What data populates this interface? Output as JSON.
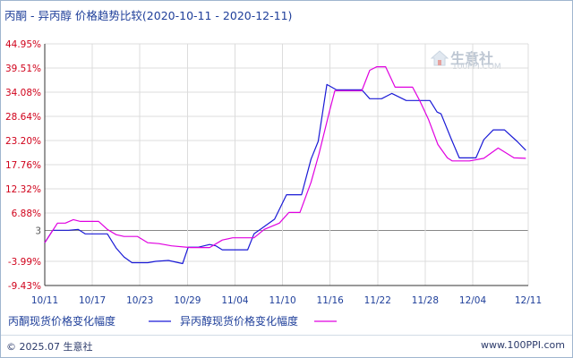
{
  "title": "丙酮 - 异丙醇 价格趋势比较(2020-10-11 - 2020-12-11)",
  "logo": {
    "name": "生意社",
    "domain": "100PPI.COM"
  },
  "footer": {
    "copyright": "© 2025.07 生意社",
    "site": "www.100PPI.com"
  },
  "chart_data": {
    "type": "line",
    "title": "丙酮 - 异丙醇 价格趋势比较(2020-10-11 - 2020-12-11)",
    "y_ticks": [
      "44.95%",
      "39.51%",
      "34.08%",
      "28.64%",
      "23.20%",
      "17.76%",
      "12.32%",
      "6.88%",
      "3",
      "-3.99%",
      "-9.43%"
    ],
    "y_tick_values": [
      44.95,
      39.51,
      34.08,
      28.64,
      23.2,
      17.76,
      12.32,
      6.88,
      3,
      -3.99,
      -9.43
    ],
    "ylim": [
      -9.43,
      44.95
    ],
    "x_labels": [
      "10/11",
      "10/17",
      "10/23",
      "10/29",
      "11/04",
      "11/10",
      "11/16",
      "11/22",
      "11/28",
      "12/04",
      "12/11"
    ],
    "x_label_days": [
      0,
      6,
      12,
      18,
      24,
      30,
      36,
      42,
      48,
      54,
      61
    ],
    "x_range_days": [
      0,
      61
    ],
    "baseline": 3,
    "grid": true,
    "legend_position": "bottom",
    "series": [
      {
        "name": "丙酮现货价格变化幅度",
        "color": "#1a1ad6",
        "points": [
          [
            0,
            0.2
          ],
          [
            1,
            3.0
          ],
          [
            3,
            3.0
          ],
          [
            4.2,
            3.2
          ],
          [
            5.1,
            2.2
          ],
          [
            7.9,
            2.2
          ],
          [
            9,
            -1.0
          ],
          [
            10,
            -3.0
          ],
          [
            11,
            -4.3
          ],
          [
            13,
            -4.3
          ],
          [
            14,
            -4.0
          ],
          [
            15.6,
            -3.8
          ],
          [
            17.4,
            -4.5
          ],
          [
            18.1,
            -0.8
          ],
          [
            19.4,
            -0.8
          ],
          [
            20.8,
            -0.2
          ],
          [
            21.6,
            -0.5
          ],
          [
            22.4,
            -1.4
          ],
          [
            23.7,
            -1.4
          ],
          [
            25.6,
            -1.4
          ],
          [
            26.4,
            2.2
          ],
          [
            27.6,
            3.7
          ],
          [
            29,
            5.5
          ],
          [
            30.5,
            11.0
          ],
          [
            32.4,
            11.0
          ],
          [
            33.6,
            19.0
          ],
          [
            34.5,
            23.0
          ],
          [
            35.6,
            35.8
          ],
          [
            36.8,
            34.6
          ],
          [
            40,
            34.6
          ],
          [
            41,
            32.6
          ],
          [
            42.5,
            32.6
          ],
          [
            43.8,
            33.8
          ],
          [
            45.6,
            32.2
          ],
          [
            48.6,
            32.2
          ],
          [
            49.5,
            29.6
          ],
          [
            50,
            29.2
          ],
          [
            51.3,
            23.5
          ],
          [
            52.3,
            19.3
          ],
          [
            54.4,
            19.3
          ],
          [
            55.4,
            23.4
          ],
          [
            56.6,
            25.6
          ],
          [
            58,
            25.6
          ],
          [
            59.6,
            23.0
          ],
          [
            60.7,
            21.0
          ]
        ]
      },
      {
        "name": "异丙醇现货价格变化幅度",
        "color": "#e000e0",
        "points": [
          [
            0,
            0.2
          ],
          [
            1.6,
            4.6
          ],
          [
            2.6,
            4.6
          ],
          [
            3.6,
            5.4
          ],
          [
            4.5,
            5.0
          ],
          [
            6.8,
            5.0
          ],
          [
            7.9,
            3.2
          ],
          [
            9,
            2.0
          ],
          [
            10,
            1.6
          ],
          [
            11.7,
            1.6
          ],
          [
            13,
            0.2
          ],
          [
            14.4,
            0.0
          ],
          [
            16,
            -0.5
          ],
          [
            18.4,
            -0.9
          ],
          [
            20.8,
            -0.9
          ],
          [
            22.4,
            0.8
          ],
          [
            23.7,
            1.3
          ],
          [
            26.4,
            1.3
          ],
          [
            27.7,
            3.2
          ],
          [
            29.6,
            4.6
          ],
          [
            30.8,
            7.0
          ],
          [
            32.2,
            7.0
          ],
          [
            33.6,
            13.8
          ],
          [
            34.6,
            20.2
          ],
          [
            35.9,
            29.6
          ],
          [
            36.6,
            34.4
          ],
          [
            38.4,
            34.4
          ],
          [
            40,
            34.4
          ],
          [
            41,
            39.0
          ],
          [
            41.9,
            39.8
          ],
          [
            43,
            39.8
          ],
          [
            44.2,
            35.2
          ],
          [
            46.4,
            35.2
          ],
          [
            47.3,
            32.2
          ],
          [
            48.4,
            28.0
          ],
          [
            49.6,
            22.3
          ],
          [
            50.8,
            19.3
          ],
          [
            51.4,
            18.6
          ],
          [
            53.6,
            18.6
          ],
          [
            55.4,
            19.2
          ],
          [
            57.2,
            21.5
          ],
          [
            59.2,
            19.3
          ],
          [
            60.7,
            19.2
          ]
        ]
      }
    ]
  },
  "colors": {
    "baseline": "#888888",
    "axis": "#333333",
    "grid": "#dcdcdc",
    "tick_label_y": "#d0021b",
    "tick_label_x": "#1f3f9a",
    "legend_text": "#1f3f9a"
  }
}
